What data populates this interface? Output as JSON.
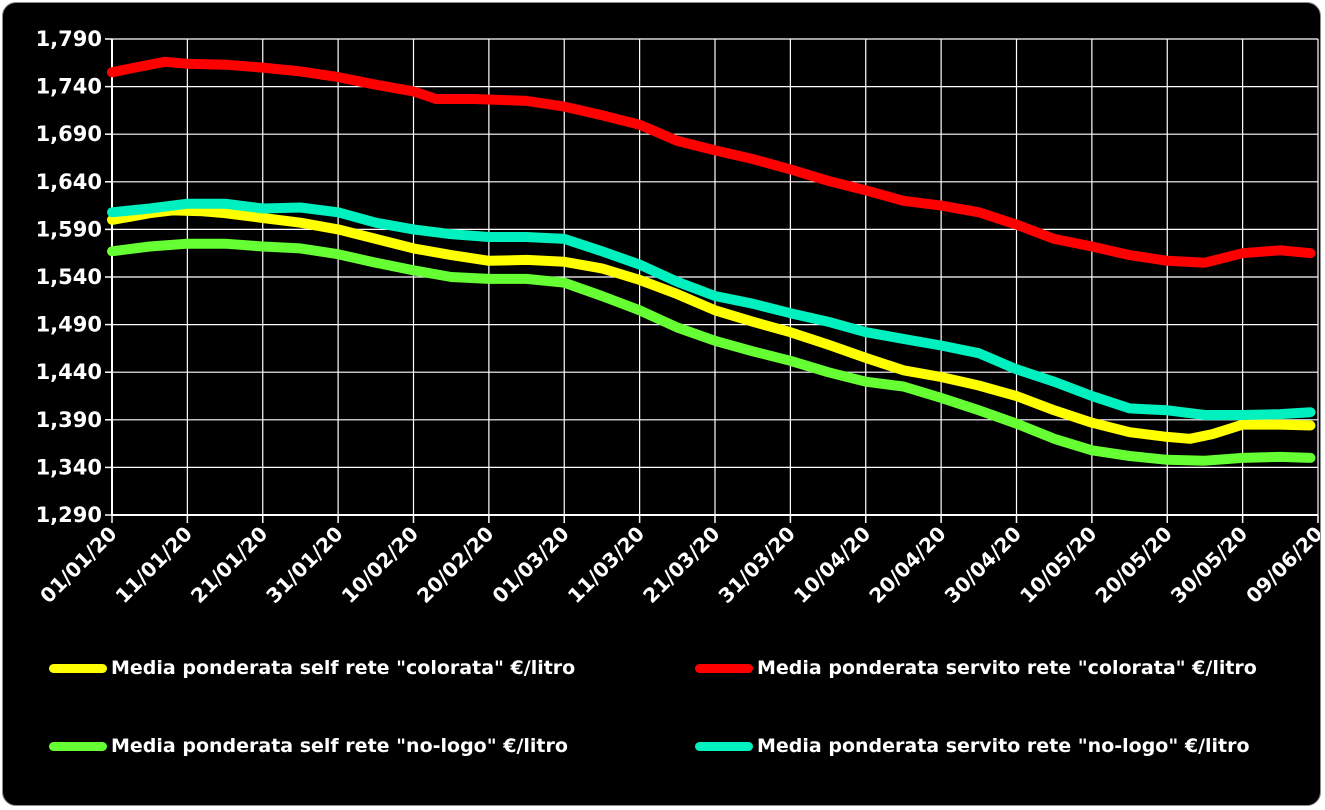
{
  "chart_data": {
    "type": "line",
    "title": "",
    "xlabel": "",
    "ylabel": "",
    "ylim": [
      1.29,
      1.79
    ],
    "y_ticks": [
      "1,790",
      "1,740",
      "1,690",
      "1,640",
      "1,590",
      "1,540",
      "1,490",
      "1,440",
      "1,390",
      "1,340",
      "1,290"
    ],
    "x_ticks": [
      "01/01/20",
      "11/01/20",
      "21/01/20",
      "31/01/20",
      "10/02/20",
      "20/02/20",
      "01/03/20",
      "11/03/20",
      "21/03/20",
      "31/03/20",
      "10/04/20",
      "20/04/20",
      "30/04/20",
      "10/05/20",
      "20/05/20",
      "30/05/20",
      "09/06/20"
    ],
    "x_range_days": [
      0,
      160
    ],
    "grid": true,
    "legend_position": "bottom",
    "series": [
      {
        "name": "Media ponderata self rete \"colorata\" €/litro",
        "color": "#ffff00",
        "points": [
          [
            0,
            1.6
          ],
          [
            5,
            1.607
          ],
          [
            8,
            1.61
          ],
          [
            12,
            1.609
          ],
          [
            15,
            1.607
          ],
          [
            20,
            1.602
          ],
          [
            25,
            1.597
          ],
          [
            30,
            1.59
          ],
          [
            35,
            1.58
          ],
          [
            40,
            1.57
          ],
          [
            45,
            1.563
          ],
          [
            50,
            1.557
          ],
          [
            55,
            1.558
          ],
          [
            60,
            1.556
          ],
          [
            65,
            1.549
          ],
          [
            70,
            1.537
          ],
          [
            75,
            1.522
          ],
          [
            80,
            1.505
          ],
          [
            85,
            1.493
          ],
          [
            90,
            1.482
          ],
          [
            95,
            1.469
          ],
          [
            100,
            1.455
          ],
          [
            105,
            1.442
          ],
          [
            110,
            1.435
          ],
          [
            115,
            1.426
          ],
          [
            120,
            1.415
          ],
          [
            125,
            1.4
          ],
          [
            130,
            1.387
          ],
          [
            135,
            1.377
          ],
          [
            140,
            1.372
          ],
          [
            143,
            1.37
          ],
          [
            146,
            1.375
          ],
          [
            150,
            1.385
          ],
          [
            155,
            1.385
          ],
          [
            159,
            1.384
          ]
        ]
      },
      {
        "name": "Media ponderata servito rete \"colorata\" €/litro",
        "color": "#ff0000",
        "points": [
          [
            0,
            1.755
          ],
          [
            3,
            1.76
          ],
          [
            7,
            1.766
          ],
          [
            10,
            1.764
          ],
          [
            15,
            1.763
          ],
          [
            20,
            1.76
          ],
          [
            25,
            1.756
          ],
          [
            30,
            1.75
          ],
          [
            35,
            1.742
          ],
          [
            40,
            1.735
          ],
          [
            43,
            1.727
          ],
          [
            48,
            1.727
          ],
          [
            55,
            1.725
          ],
          [
            60,
            1.719
          ],
          [
            65,
            1.71
          ],
          [
            70,
            1.7
          ],
          [
            75,
            1.683
          ],
          [
            80,
            1.673
          ],
          [
            85,
            1.664
          ],
          [
            90,
            1.653
          ],
          [
            95,
            1.641
          ],
          [
            100,
            1.631
          ],
          [
            105,
            1.62
          ],
          [
            110,
            1.615
          ],
          [
            115,
            1.608
          ],
          [
            120,
            1.595
          ],
          [
            125,
            1.58
          ],
          [
            130,
            1.572
          ],
          [
            135,
            1.563
          ],
          [
            140,
            1.557
          ],
          [
            145,
            1.555
          ],
          [
            150,
            1.565
          ],
          [
            155,
            1.568
          ],
          [
            159,
            1.565
          ]
        ]
      },
      {
        "name": "Media ponderata self rete \"no-logo\" €/litro",
        "color": "#66ff33",
        "points": [
          [
            0,
            1.567
          ],
          [
            5,
            1.572
          ],
          [
            10,
            1.575
          ],
          [
            15,
            1.575
          ],
          [
            20,
            1.572
          ],
          [
            25,
            1.57
          ],
          [
            30,
            1.564
          ],
          [
            35,
            1.555
          ],
          [
            40,
            1.547
          ],
          [
            45,
            1.54
          ],
          [
            50,
            1.538
          ],
          [
            55,
            1.538
          ],
          [
            60,
            1.534
          ],
          [
            65,
            1.52
          ],
          [
            70,
            1.505
          ],
          [
            75,
            1.487
          ],
          [
            80,
            1.473
          ],
          [
            85,
            1.462
          ],
          [
            90,
            1.452
          ],
          [
            95,
            1.44
          ],
          [
            100,
            1.43
          ],
          [
            105,
            1.425
          ],
          [
            110,
            1.413
          ],
          [
            115,
            1.4
          ],
          [
            120,
            1.386
          ],
          [
            125,
            1.37
          ],
          [
            130,
            1.358
          ],
          [
            135,
            1.352
          ],
          [
            140,
            1.348
          ],
          [
            145,
            1.347
          ],
          [
            150,
            1.35
          ],
          [
            155,
            1.351
          ],
          [
            159,
            1.35
          ]
        ]
      },
      {
        "name": "Media ponderata servito rete \"no-logo\" €/litro",
        "color": "#00f0c0",
        "points": [
          [
            0,
            1.608
          ],
          [
            5,
            1.612
          ],
          [
            10,
            1.617
          ],
          [
            15,
            1.617
          ],
          [
            20,
            1.612
          ],
          [
            25,
            1.613
          ],
          [
            30,
            1.608
          ],
          [
            35,
            1.597
          ],
          [
            40,
            1.59
          ],
          [
            45,
            1.585
          ],
          [
            50,
            1.582
          ],
          [
            55,
            1.582
          ],
          [
            60,
            1.58
          ],
          [
            65,
            1.567
          ],
          [
            70,
            1.553
          ],
          [
            75,
            1.535
          ],
          [
            80,
            1.52
          ],
          [
            85,
            1.512
          ],
          [
            90,
            1.502
          ],
          [
            95,
            1.493
          ],
          [
            100,
            1.482
          ],
          [
            105,
            1.475
          ],
          [
            110,
            1.468
          ],
          [
            115,
            1.46
          ],
          [
            120,
            1.443
          ],
          [
            125,
            1.43
          ],
          [
            130,
            1.415
          ],
          [
            135,
            1.402
          ],
          [
            140,
            1.4
          ],
          [
            145,
            1.395
          ],
          [
            150,
            1.395
          ],
          [
            155,
            1.396
          ],
          [
            159,
            1.398
          ]
        ]
      }
    ]
  }
}
